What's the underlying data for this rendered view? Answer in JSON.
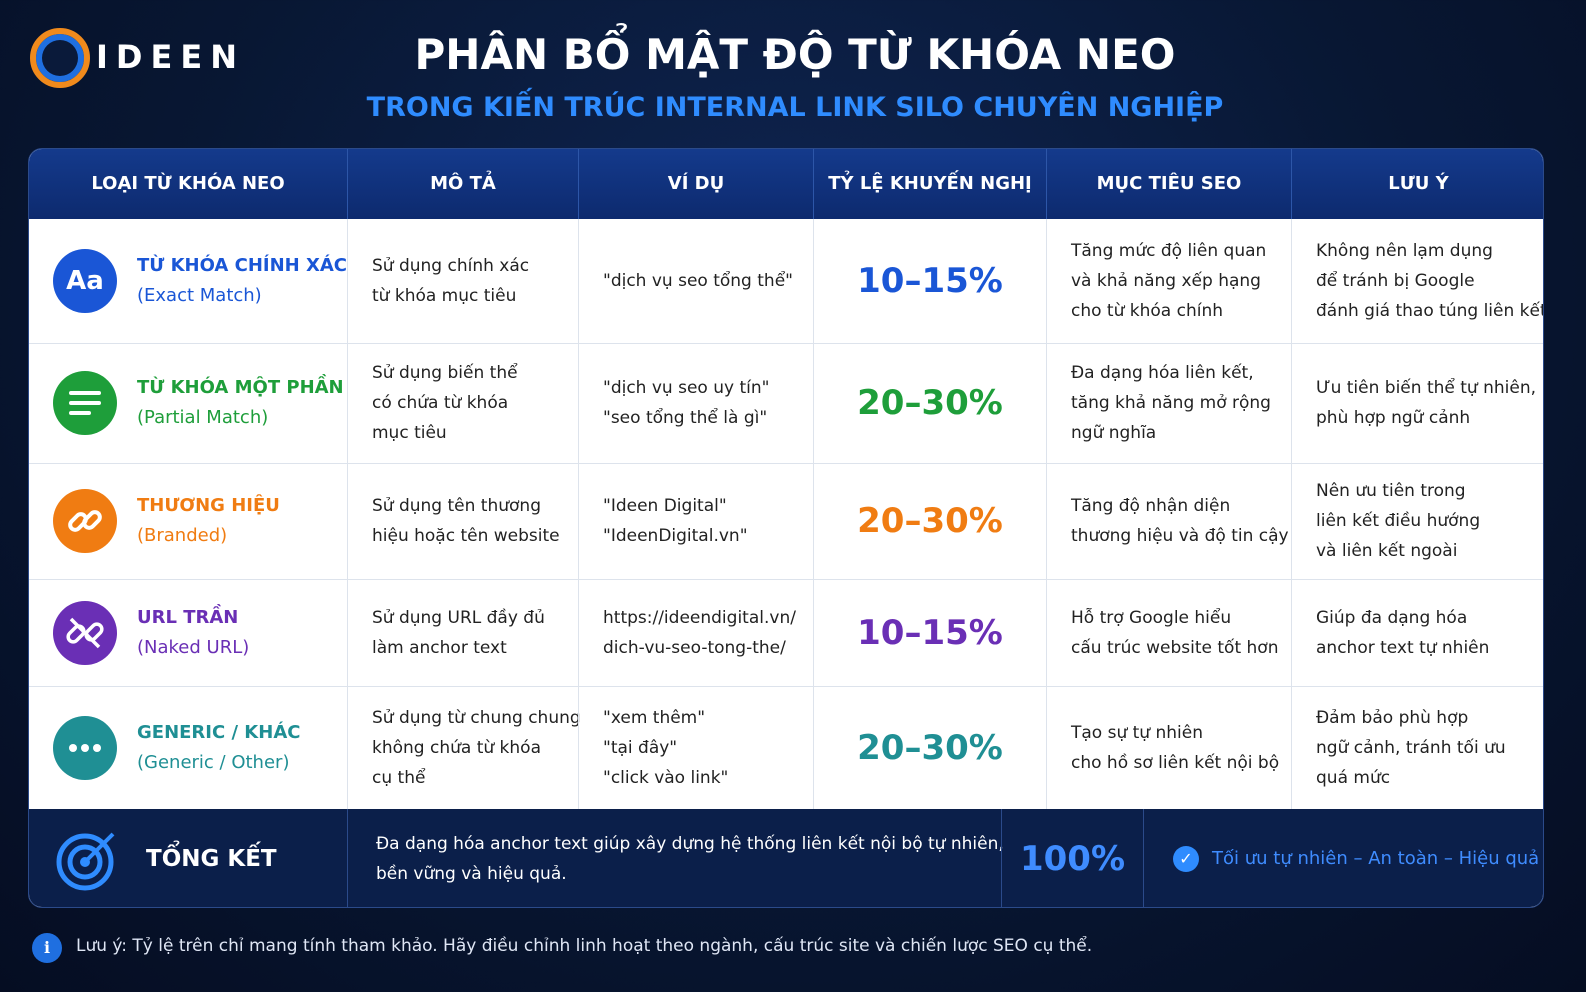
{
  "header": {
    "logo": "IDEEN",
    "title": "PHÂN BỔ MẬT ĐỘ TỪ KHÓA NEO",
    "subtitle": "TRONG KIẾN TRÚC INTERNAL LINK SILO CHUYÊN NGHIỆP"
  },
  "table": {
    "columns": [
      "LOẠI TỪ KHÓA NEO",
      "MÔ TẢ",
      "VÍ DỤ",
      "TỶ LỆ KHUYẾN NGHỊ",
      "MỤC TIÊU SEO",
      "LƯU Ý"
    ],
    "rows": [
      {
        "color": "#1a56d6",
        "icon_label": "Aa",
        "name": "TỪ KHÓA CHÍNH XÁC",
        "name_en": "(Exact Match)",
        "description": [
          "Sử dụng chính xác",
          "từ khóa mục tiêu"
        ],
        "example": [
          "\"dịch vụ seo tổng thể\""
        ],
        "ratio": "10–15%",
        "goal": [
          "Tăng mức độ liên quan",
          "và khả năng xếp hạng",
          "cho từ khóa chính"
        ],
        "note": [
          "Không nên lạm dụng",
          "để tránh bị Google",
          "đánh giá thao túng liên kết"
        ]
      },
      {
        "color": "#1e9e3a",
        "name": "TỪ KHÓA MỘT PHẦN",
        "name_en": "(Partial Match)",
        "description": [
          "Sử dụng biến thể",
          "có chứa từ khóa",
          "mục tiêu"
        ],
        "example": [
          "\"dịch vụ seo uy tín\"",
          "\"seo tổng thể là gì\""
        ],
        "ratio": "20–30%",
        "goal": [
          "Đa dạng hóa liên kết,",
          "tăng khả năng mở rộng",
          "ngữ nghĩa"
        ],
        "note": [
          "Ưu tiên biến thể tự nhiên,",
          "phù hợp ngữ cảnh"
        ]
      },
      {
        "color": "#f07c12",
        "name": "THƯƠNG HIỆU",
        "name_en": "(Branded)",
        "description": [
          "Sử dụng tên thương",
          "hiệu hoặc tên website"
        ],
        "example": [
          "\"Ideen Digital\"",
          "\"IdeenDigital.vn\""
        ],
        "ratio": "20–30%",
        "goal": [
          "Tăng độ nhận diện",
          "thương hiệu và độ tin cậy"
        ],
        "note": [
          "Nên ưu tiên trong",
          "liên kết điều hướng",
          "và liên kết ngoài"
        ]
      },
      {
        "color": "#6a2fb5",
        "name": "URL TRẦN",
        "name_en": "(Naked URL)",
        "description": [
          "Sử dụng URL đầy đủ",
          "làm anchor text"
        ],
        "example": [
          "https://ideendigital.vn/",
          "dich-vu-seo-tong-the/"
        ],
        "ratio": "10–15%",
        "goal": [
          "Hỗ trợ Google hiểu",
          "cấu trúc website tốt hơn"
        ],
        "note": [
          "Giúp đa dạng hóa",
          "anchor text tự nhiên"
        ]
      },
      {
        "color": "#1f8f94",
        "name": "GENERIC / KHÁC",
        "name_en": "(Generic / Other)",
        "description": [
          "Sử dụng từ chung chung",
          "không chứa từ khóa",
          "cụ thể"
        ],
        "example": [
          "\"xem thêm\"",
          "\"tại đây\"",
          "\"click vào link\""
        ],
        "ratio": "20–30%",
        "goal": [
          "Tạo sự tự nhiên",
          "cho hồ sơ liên kết nội bộ"
        ],
        "note": [
          "Đảm bảo phù hợp",
          "ngữ cảnh, tránh tối ưu",
          "quá mức"
        ]
      }
    ]
  },
  "summary": {
    "label": "TỔNG KẾT",
    "text": [
      "Đa dạng hóa anchor text giúp xây dựng hệ thống liên kết nội bộ tự nhiên,",
      "bền vững và hiệu quả."
    ],
    "total": "100%",
    "tagline": "Tối ưu tự nhiên – An toàn – Hiệu quả"
  },
  "footnote": {
    "label": "Lưu ý:",
    "text": "Tỷ lệ trên chỉ mang tính tham khảo. Hãy điều chỉnh linh hoạt theo ngành, cấu trúc site và chiến lược SEO cụ thể."
  }
}
